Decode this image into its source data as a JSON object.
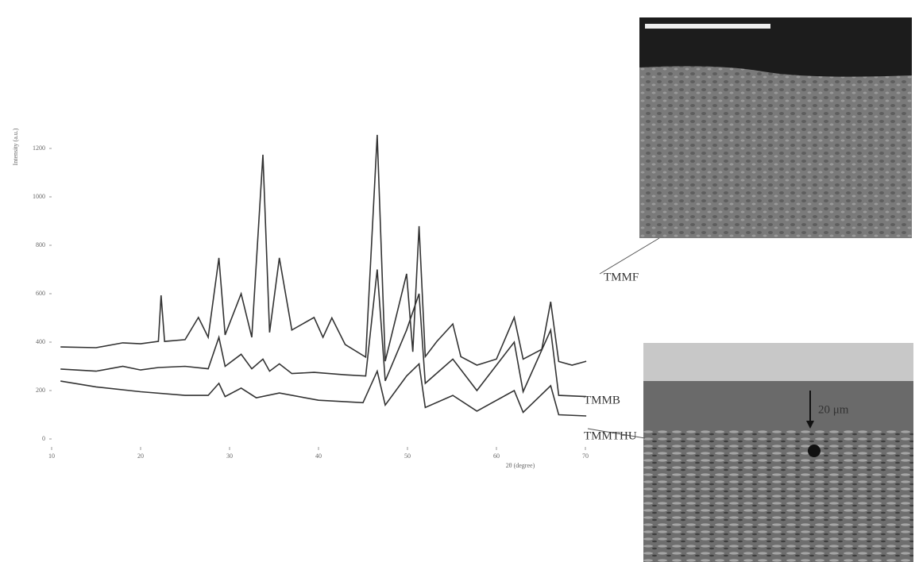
{
  "chart_data": {
    "type": "line",
    "x_label": "2θ (degree)",
    "y_label": "Intensity (a.u.)",
    "xlim": [
      10,
      70
    ],
    "xticks": [
      10,
      20,
      30,
      40,
      50,
      60,
      70
    ],
    "ylim": [
      0,
      1200
    ],
    "yticks": [
      0,
      200,
      400,
      600,
      800,
      1000,
      1200
    ],
    "scale_bar_label": "20 μm",
    "series": [
      {
        "name": "TMMF",
        "color": "#333333",
        "x": [
          11,
          15,
          18,
          20,
          22,
          22.3,
          22.7,
          25,
          26.5,
          27.6,
          28.8,
          29.5,
          31.3,
          32.5,
          33.75,
          34.5,
          35.6,
          37,
          39.5,
          40.5,
          41.5,
          43,
          45.3,
          46.6,
          47.5,
          49.9,
          50.6,
          51.3,
          52,
          53.3,
          55.1,
          56,
          57.8,
          60,
          62,
          63,
          65.1,
          66.1,
          67,
          68.5,
          70.1
        ],
        "values": [
          380,
          377,
          397,
          393,
          403,
          593,
          403,
          410,
          502,
          420,
          748,
          430,
          600,
          420,
          1174,
          440,
          748,
          450,
          502,
          420,
          500,
          390,
          338,
          1256,
          321,
          682,
          360,
          879,
          340,
          403,
          475,
          340,
          305,
          330,
          502,
          330,
          370,
          567,
          320,
          305,
          321
        ]
      },
      {
        "name": "TMMB",
        "color": "#333333",
        "x": [
          11,
          15,
          18,
          20,
          22,
          25,
          27.6,
          28.8,
          29.5,
          31.3,
          32.5,
          33.75,
          34.5,
          35.6,
          37,
          39.5,
          43,
          45.3,
          46.6,
          47.5,
          49.9,
          51.3,
          52,
          55.1,
          57.8,
          62,
          63,
          66.1,
          67,
          70.1
        ],
        "values": [
          289,
          280,
          300,
          285,
          295,
          300,
          290,
          420,
          300,
          350,
          290,
          330,
          280,
          310,
          270,
          275,
          265,
          260,
          700,
          240,
          450,
          600,
          230,
          330,
          200,
          400,
          195,
          450,
          180,
          175
        ]
      },
      {
        "name": "TMMTHU",
        "color": "#333333",
        "x": [
          11,
          15,
          20,
          25,
          27.6,
          28.8,
          29.5,
          31.3,
          33,
          35.6,
          40,
          45,
          46.6,
          47.5,
          49.9,
          51.3,
          52,
          55.1,
          57.8,
          62,
          63,
          66.1,
          67,
          70.1
        ],
        "values": [
          239,
          215,
          195,
          180,
          180,
          230,
          175,
          210,
          170,
          190,
          160,
          150,
          280,
          140,
          260,
          310,
          130,
          180,
          115,
          200,
          110,
          220,
          100,
          95
        ]
      }
    ]
  }
}
